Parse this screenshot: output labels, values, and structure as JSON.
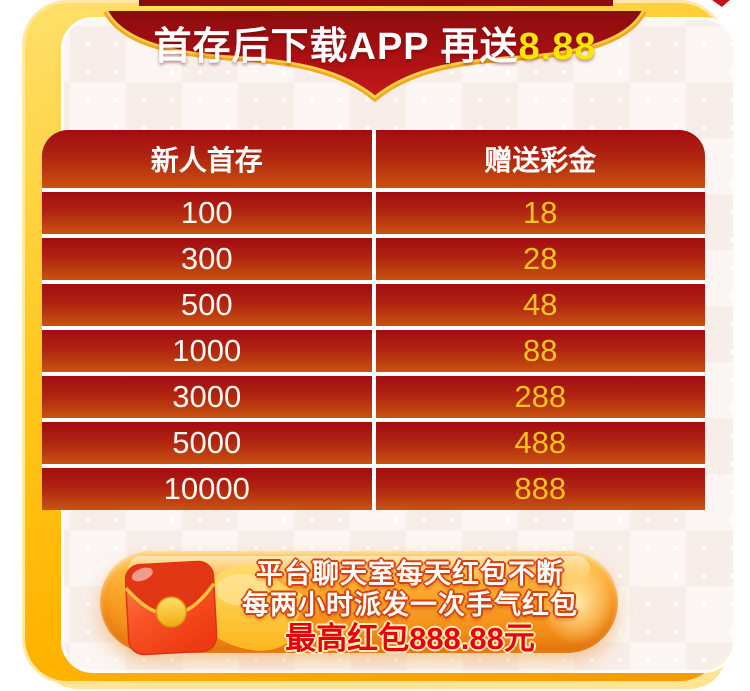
{
  "banner": {
    "main": "首存后下载APP 再送",
    "highlight": "8.88"
  },
  "table": {
    "headers": [
      "新人首存",
      "赠送彩金"
    ],
    "rows": [
      [
        "100",
        "18"
      ],
      [
        "300",
        "28"
      ],
      [
        "500",
        "48"
      ],
      [
        "1000",
        "88"
      ],
      [
        "3000",
        "288"
      ],
      [
        "5000",
        "488"
      ],
      [
        "10000",
        "888"
      ]
    ]
  },
  "promo": {
    "icon": "red-envelope-icon",
    "line1": "平台聊天室每天红包不断",
    "line2": "每两小时派发一次手气红包",
    "line3": "最高红包888.88元"
  },
  "colors": {
    "banner_red": "#A80E11",
    "frame_gold": "#FFC400",
    "row_gradient_top": "#A30C12",
    "row_gradient_bottom": "#C85310",
    "bonus_yellow": "#F7C51E",
    "highlight_yellow": "#FFE500",
    "promo_red": "#E8000F",
    "pill_orange": "#FA9B22"
  }
}
